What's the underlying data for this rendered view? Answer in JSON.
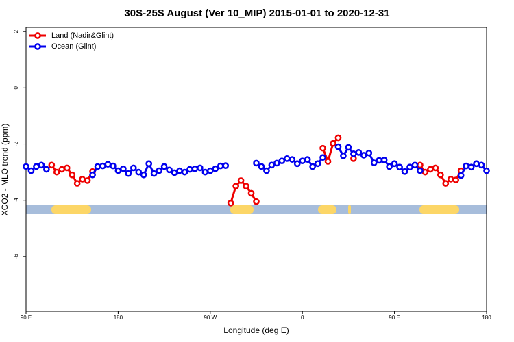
{
  "chart_data": {
    "type": "line",
    "title": "30S-25S August (Ver 10_MIP)   2015-01-01 to 2020-12-31",
    "x_label": "Longitude (deg E)",
    "y_label": "XCO2 - MLO trend (ppm)",
    "x": [
      90,
      95,
      100,
      105,
      110,
      115,
      120,
      125,
      130,
      135,
      140,
      145,
      150,
      155,
      160,
      165,
      170,
      175,
      180,
      185,
      190,
      195,
      200,
      205,
      210,
      215,
      220,
      225,
      230,
      235,
      240,
      245,
      250,
      255,
      260,
      265,
      270,
      275,
      280,
      285,
      290,
      295,
      300,
      305,
      310,
      315,
      320,
      325,
      330,
      335,
      340,
      345,
      350,
      355,
      360,
      365,
      370,
      375,
      380,
      385,
      390,
      395,
      400,
      405,
      410,
      415,
      420,
      425,
      430,
      435,
      440,
      445,
      450,
      455,
      460,
      465,
      470,
      475,
      480,
      485,
      490,
      495,
      500,
      505,
      510,
      515,
      520,
      525,
      530,
      535,
      540
    ],
    "series": [
      {
        "name": "Land (Nadir&Glint)",
        "color": "#ee0000",
        "values": [
          null,
          null,
          null,
          null,
          null,
          -2.75,
          -3.0,
          -2.9,
          -2.85,
          -3.1,
          -3.4,
          -3.25,
          -3.3,
          -2.98,
          null,
          null,
          null,
          null,
          null,
          null,
          null,
          null,
          null,
          null,
          null,
          null,
          null,
          null,
          null,
          null,
          null,
          null,
          null,
          null,
          null,
          null,
          null,
          null,
          null,
          null,
          -4.1,
          -3.5,
          -3.3,
          -3.5,
          -3.75,
          -4.05,
          null,
          null,
          null,
          null,
          null,
          null,
          null,
          null,
          null,
          null,
          null,
          null,
          -2.15,
          -2.62,
          -1.98,
          -1.78,
          null,
          null,
          -2.52,
          null,
          null,
          null,
          null,
          null,
          null,
          null,
          null,
          null,
          null,
          null,
          null,
          -2.75,
          -3.0,
          -2.9,
          -2.85,
          -3.1,
          -3.4,
          -3.25,
          -3.28,
          -2.95,
          null,
          null,
          null,
          null,
          null
        ]
      },
      {
        "name": "Ocean (Glint)",
        "color": "#0000ee",
        "values": [
          -2.8,
          -2.95,
          -2.8,
          -2.75,
          -2.9,
          null,
          null,
          null,
          null,
          null,
          null,
          null,
          null,
          -3.1,
          -2.8,
          -2.78,
          -2.72,
          -2.78,
          -2.95,
          -2.88,
          -3.05,
          -2.85,
          -3.0,
          -3.1,
          -2.7,
          -3.05,
          -2.95,
          -2.8,
          -2.92,
          -3.02,
          -2.95,
          -3.0,
          -2.9,
          -2.88,
          -2.85,
          -3.0,
          -2.95,
          -2.88,
          -2.78,
          -2.77,
          null,
          null,
          null,
          null,
          null,
          -2.68,
          -2.8,
          -2.95,
          -2.75,
          -2.68,
          -2.6,
          -2.52,
          -2.55,
          -2.7,
          -2.6,
          -2.55,
          -2.8,
          -2.7,
          -2.48,
          null,
          null,
          -2.1,
          -2.42,
          -2.12,
          -2.35,
          -2.3,
          -2.4,
          -2.32,
          -2.67,
          -2.58,
          -2.57,
          -2.8,
          -2.7,
          -2.82,
          -2.98,
          -2.82,
          -2.75,
          -2.95,
          null,
          null,
          null,
          null,
          null,
          null,
          null,
          -3.12,
          -2.78,
          -2.82,
          -2.7,
          -2.75,
          -2.95
        ]
      }
    ],
    "xlim": [
      90,
      540
    ],
    "xticks": [
      {
        "value": 90,
        "label": "90 E"
      },
      180,
      {
        "value": 270,
        "label": "90 W"
      },
      {
        "value": 360,
        "label": "0"
      },
      {
        "value": 450,
        "label": "90 E"
      },
      {
        "value": 540,
        "label": "180"
      }
    ],
    "ylim": [
      -7.95,
      2.15
    ],
    "yticks": [
      2,
      0,
      -2,
      -4,
      -6
    ],
    "legend": "topleft",
    "grid": false
  }
}
